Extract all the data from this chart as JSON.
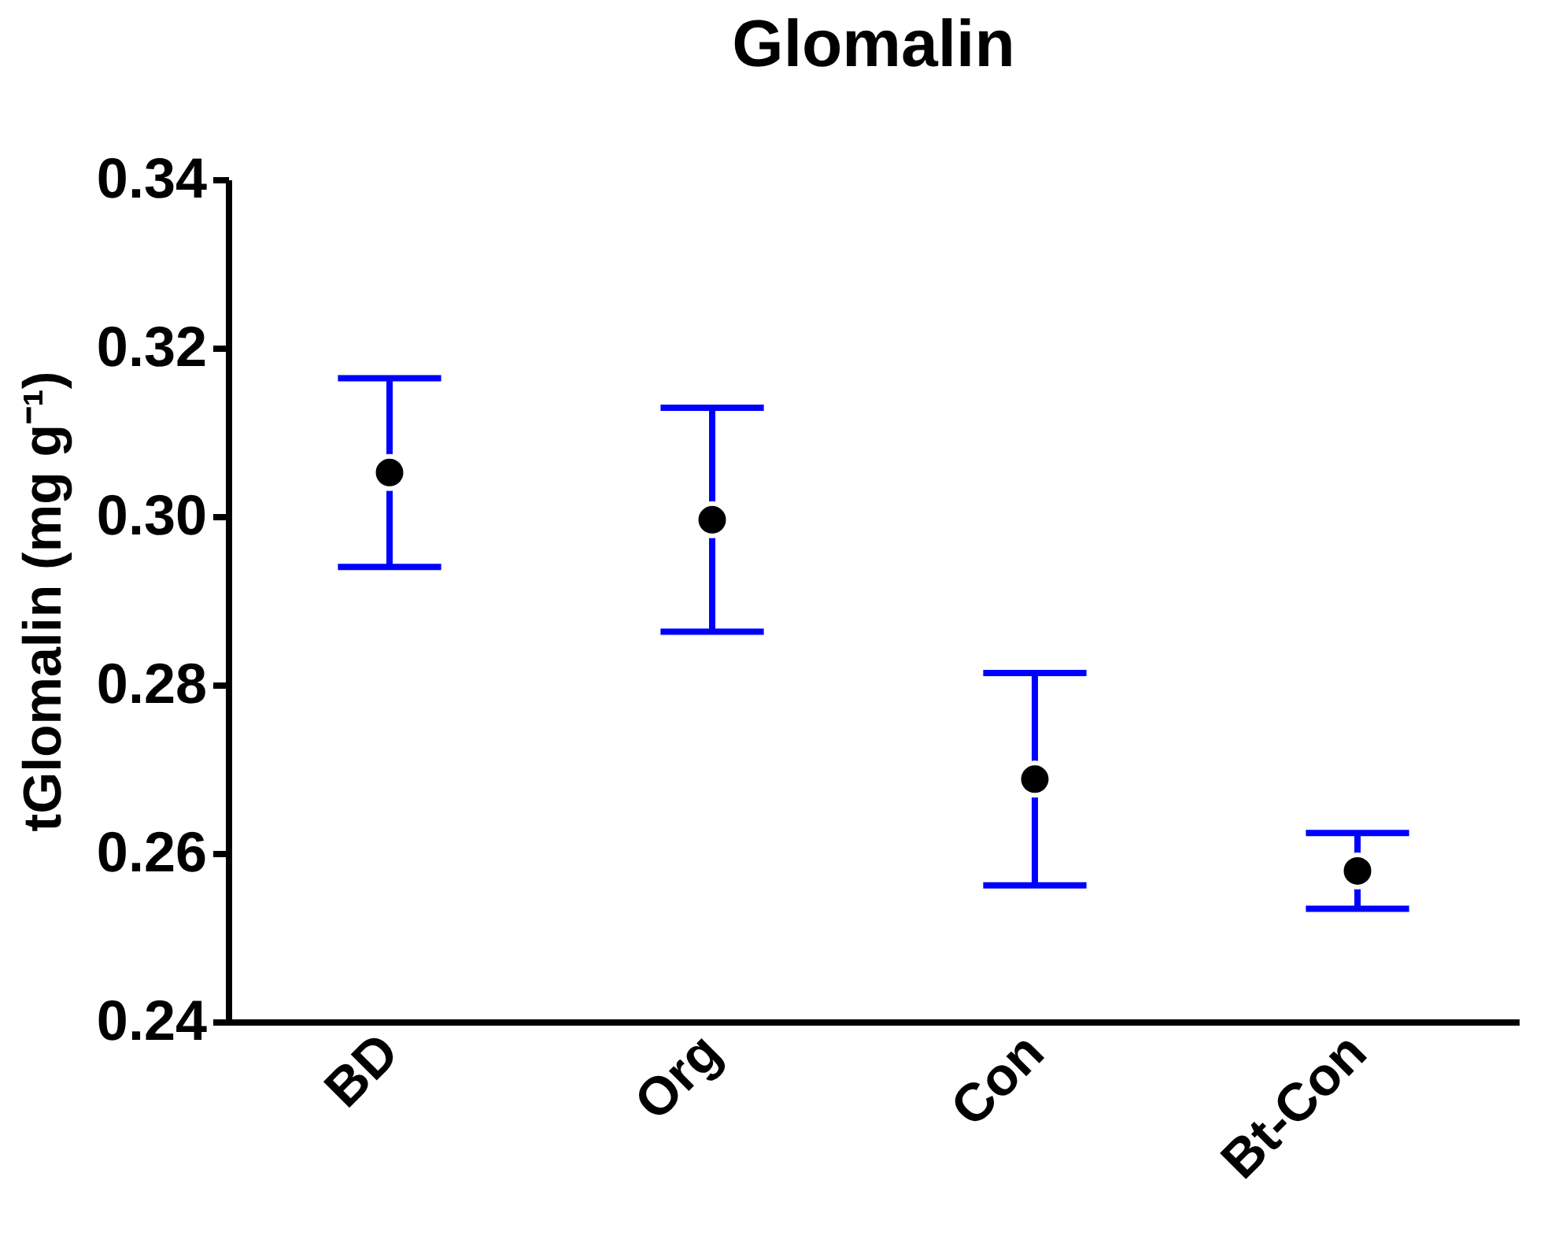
{
  "chart_data": {
    "type": "scatter",
    "title": "Glomalin",
    "ylabel": "tGlomalin (mg g⁻¹)",
    "categories": [
      "BD",
      "Org",
      "Con",
      "Bt-Con"
    ],
    "series": [
      {
        "color": "#000000",
        "values": [
          0.3052,
          0.2996,
          0.2688,
          0.2579
        ],
        "errors": [
          0.0112,
          0.0133,
          0.0126,
          0.0045
        ]
      }
    ],
    "ylim": [
      0.24,
      0.34
    ],
    "yticks": [
      0.24,
      0.26,
      0.28,
      {
        "value": 0.3,
        "label": "0.30"
      },
      0.32,
      0.34
    ],
    "grid": false,
    "marker": "circle"
  }
}
